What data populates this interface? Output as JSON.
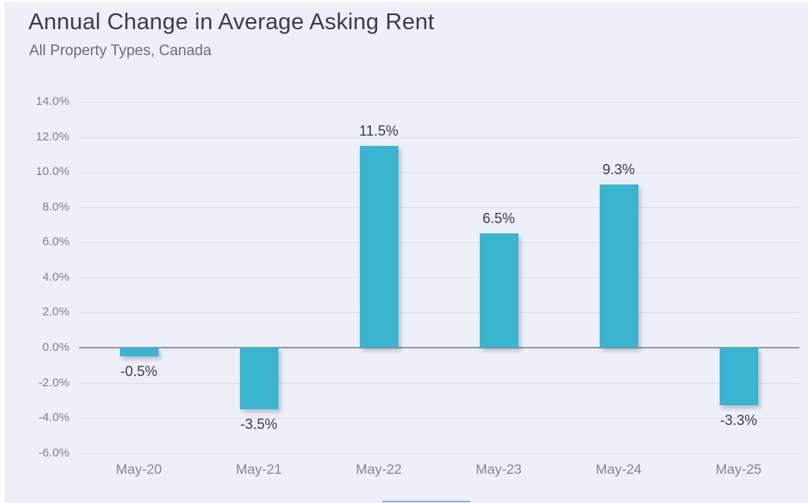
{
  "chart": {
    "surface_background": "#edf0f9",
    "title_color": "#3a3e45",
    "subtitle_color": "#6a6f76",
    "bar_color": "#3ab4cf",
    "gridline_color": "#dadde6",
    "zero_line_color": "#97999e",
    "y_tick_color": "#7c818a",
    "x_tick_color": "#84878e",
    "value_label_color": "#3a3e45",
    "bottom_edge_line_color": "#7ea3e0"
  },
  "chart_data": {
    "type": "bar",
    "title": "Annual Change in Average Asking Rent",
    "subtitle": "All Property Types, Canada",
    "categories": [
      "May-20",
      "May-21",
      "May-22",
      "May-23",
      "May-24",
      "May-25"
    ],
    "values": [
      -0.5,
      -3.5,
      11.5,
      6.5,
      9.3,
      -3.3
    ],
    "value_labels": [
      "-0.5%",
      "-3.5%",
      "11.5%",
      "6.5%",
      "9.3%",
      "-3.3%"
    ],
    "xlabel": "",
    "ylabel": "",
    "ylim": [
      -6,
      14
    ],
    "y_ticks": [
      14,
      12,
      10,
      8,
      6,
      4,
      2,
      0,
      -2,
      -4,
      -6
    ],
    "y_tick_labels": [
      "14.0%",
      "12.0%",
      "10.0%",
      "8.0%",
      "6.0%",
      "4.0%",
      "2.0%",
      "0.0%",
      "-2.0%",
      "-4.0%",
      "-6.0%"
    ],
    "grid": true,
    "legend": "none"
  }
}
